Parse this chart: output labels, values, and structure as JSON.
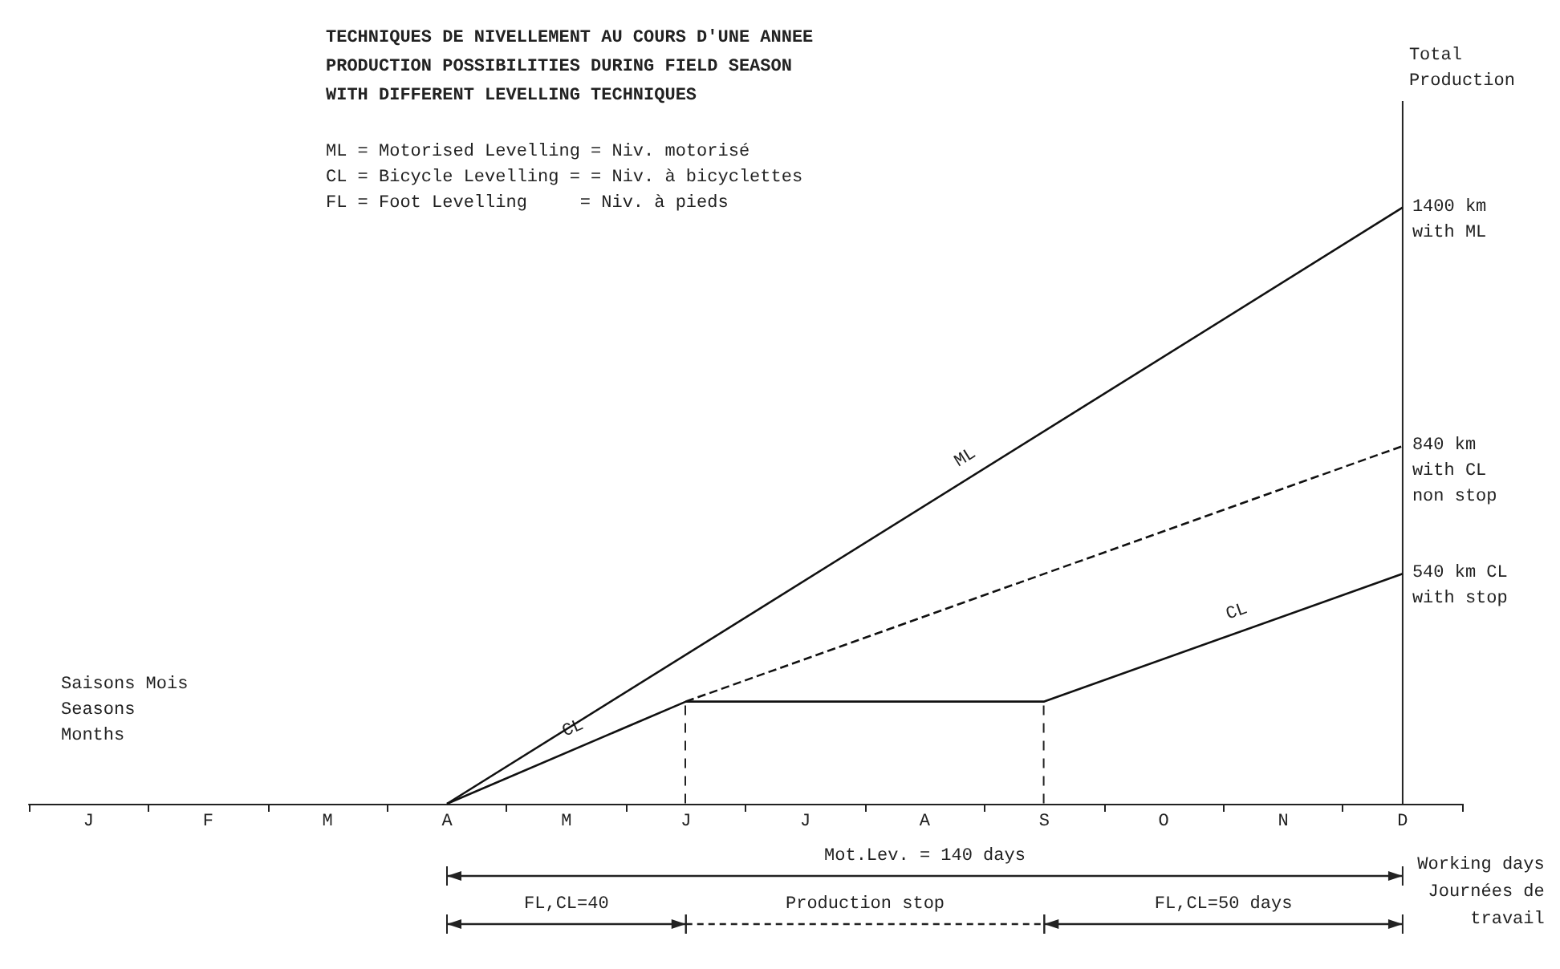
{
  "chart_data": {
    "type": "line",
    "title": "TECHNIQUES DE NIVELLEMENT AU COURS D'UNE ANNEE\nPRODUCTION POSSIBILITIES DURING FIELD SEASON\nWITH DIFFERENT LEVELLING TECHNIQUES",
    "subtitle": "ML = Motorised Levelling = Niv. motorisé\nCL = Bicycle Levelling = = Niv. à bicyclettes\nFL = Foot Levelling     = Niv. à pieds",
    "xlabel": "Working days\nJournées de\ntravail",
    "ylabel": "Total\nProduction",
    "categories": [
      "J",
      "F",
      "M",
      "A",
      "M",
      "J",
      "J",
      "A",
      "S",
      "O",
      "N",
      "D"
    ],
    "series": [
      {
        "name": "ML",
        "color": "#111111",
        "values": [
          null,
          null,
          null,
          0,
          null,
          null,
          null,
          null,
          null,
          null,
          null,
          1400
        ],
        "value_labels": [
          null,
          null,
          null,
          null,
          null,
          null,
          null,
          null,
          null,
          null,
          null,
          "1400 km\nwith ML"
        ],
        "line_style": "solid"
      },
      {
        "color": "#111111",
        "values": [
          null,
          null,
          null,
          null,
          null,
          240,
          null,
          null,
          null,
          null,
          null,
          840
        ],
        "value_labels": [
          null,
          null,
          null,
          null,
          null,
          null,
          null,
          null,
          null,
          null,
          null,
          "840 km\nwith CL\nnon stop"
        ],
        "line_style": "dashed"
      },
      {
        "name": "CL",
        "color": "#111111",
        "values": [
          null,
          null,
          null,
          0,
          null,
          240,
          null,
          null,
          240,
          null,
          null,
          540
        ],
        "value_labels": [
          null,
          null,
          null,
          null,
          null,
          null,
          null,
          null,
          null,
          null,
          null,
          "540 km CL\nwith stop"
        ],
        "line_style": "solid"
      }
    ],
    "ylim": [
      0,
      1650
    ],
    "tick_labels": "x",
    "legend": false,
    "marker": "none",
    "annotations": [
      "Saisons Mois\nSeasons\nMonths",
      "Mot.Lev. = 140 days",
      "FL,CL=40",
      "Production stop",
      "FL,CL=50 days"
    ]
  }
}
